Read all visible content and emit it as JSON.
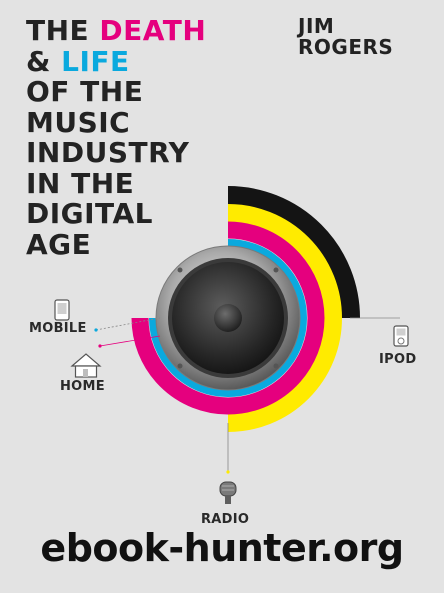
{
  "title": {
    "line1": {
      "a": "THE ",
      "b": "DEATH"
    },
    "line2": {
      "a": "& ",
      "b": "LIFE"
    },
    "line3": "OF THE",
    "line4": "MUSIC",
    "line5": "INDUSTRY",
    "line6": "IN THE",
    "line7": "DIGITAL",
    "line8": "AGE"
  },
  "author": {
    "first": "JIM",
    "last": "ROGERS"
  },
  "labels": {
    "mobile": "MOBILE",
    "home": "HOME",
    "ipod": "IPOD",
    "radio": "RADIO"
  },
  "watermark": "ebook-hunter.org",
  "colors": {
    "background": "#e3e3e3",
    "text": "#232323",
    "magenta": "#e5007e",
    "cyan": "#0aa9de",
    "yellow": "#ffeb00",
    "black": "#141414"
  }
}
